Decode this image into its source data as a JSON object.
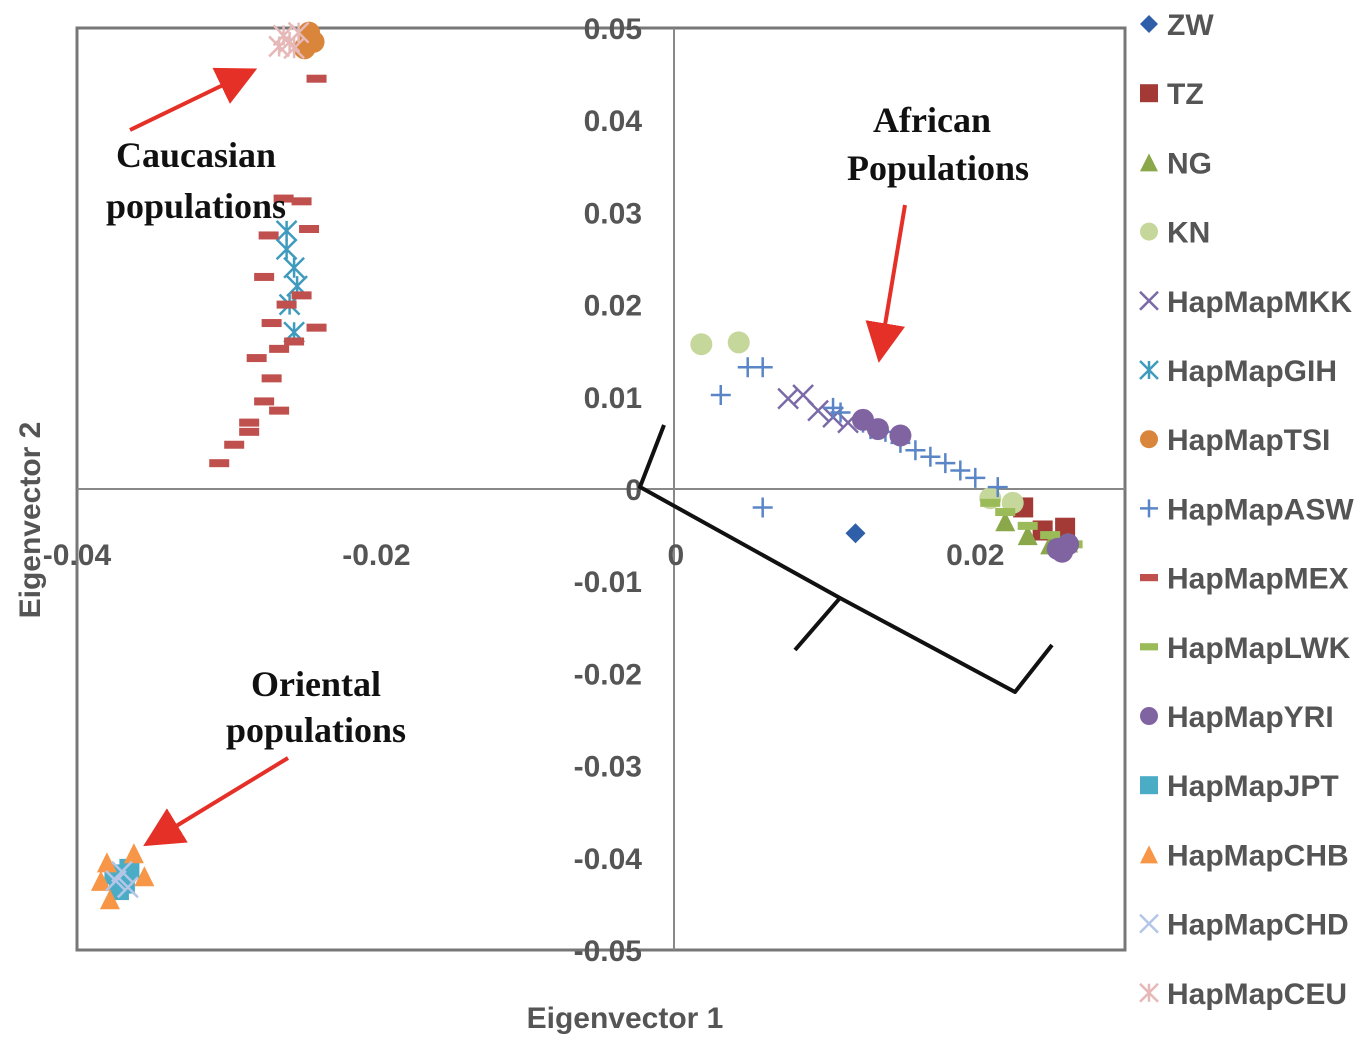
{
  "chart_data": {
    "type": "scatter",
    "xlabel": "Eigenvector 1",
    "ylabel": "Eigenvector 2",
    "xlim": [
      -0.04,
      0.03
    ],
    "ylim": [
      -0.05,
      0.05
    ],
    "x_ticks": [
      "-0.04",
      "-0.02",
      "0",
      "0.02"
    ],
    "y_ticks": [
      "0.05",
      "0.04",
      "0.03",
      "0.02",
      "0.01",
      "0",
      "-0.01",
      "-0.02",
      "-0.03",
      "-0.04",
      "-0.05"
    ],
    "grid": false,
    "legend_position": "right",
    "series": [
      {
        "name": "ZW",
        "marker": "diamond",
        "color": "#2e5fa8",
        "points": [
          [
            0.012,
            -0.0048
          ]
        ]
      },
      {
        "name": "TZ",
        "marker": "square",
        "color": "#a33a36",
        "points": [
          [
            0.0232,
            -0.002
          ],
          [
            0.0245,
            -0.0045
          ],
          [
            0.026,
            -0.0042
          ]
        ]
      },
      {
        "name": "NG",
        "marker": "triangle",
        "color": "#8aa84a",
        "points": [
          [
            0.022,
            -0.0035
          ],
          [
            0.0235,
            -0.005
          ],
          [
            0.025,
            -0.006
          ],
          [
            0.0262,
            -0.0058
          ]
        ]
      },
      {
        "name": "KN",
        "marker": "circle",
        "color": "#c6d79c",
        "points": [
          [
            0.0017,
            0.0157
          ],
          [
            0.0042,
            0.0159
          ],
          [
            0.0225,
            -0.0015
          ],
          [
            0.021,
            -0.001
          ]
        ]
      },
      {
        "name": "HapMapMKK",
        "marker": "x",
        "color": "#7b6aa8",
        "points": [
          [
            0.0075,
            0.0098
          ],
          [
            0.0085,
            0.0102
          ],
          [
            0.0095,
            0.0085
          ],
          [
            0.0105,
            0.0078
          ],
          [
            0.0115,
            0.0072
          ]
        ]
      },
      {
        "name": "HapMapGIH",
        "marker": "star",
        "color": "#3f9bbd",
        "points": [
          [
            -0.026,
            0.028
          ],
          [
            -0.0255,
            0.024
          ],
          [
            -0.0258,
            0.02
          ],
          [
            -0.0255,
            0.017
          ],
          [
            -0.026,
            0.026
          ],
          [
            -0.0253,
            0.022
          ]
        ]
      },
      {
        "name": "HapMapTSI",
        "marker": "circle",
        "color": "#d9853b",
        "points": [
          [
            -0.0242,
            0.0485
          ],
          [
            -0.0245,
            0.0495
          ],
          [
            -0.0248,
            0.0478
          ]
        ]
      },
      {
        "name": "HapMapASW",
        "marker": "plus",
        "color": "#5a86c7",
        "points": [
          [
            0.003,
            0.0102
          ],
          [
            0.0048,
            0.0132
          ],
          [
            0.0058,
            0.0132
          ],
          [
            0.0058,
            -0.002
          ],
          [
            0.0105,
            0.0088
          ],
          [
            0.0125,
            0.0072
          ],
          [
            0.014,
            0.0062
          ],
          [
            0.016,
            0.0042
          ],
          [
            0.018,
            0.0028
          ],
          [
            0.02,
            0.0012
          ],
          [
            0.0215,
            0.0002
          ],
          [
            0.019,
            0.002
          ],
          [
            0.017,
            0.0035
          ],
          [
            0.015,
            0.005
          ],
          [
            0.013,
            0.0065
          ],
          [
            0.011,
            0.0083
          ]
        ]
      },
      {
        "name": "HapMapMEX",
        "marker": "dash",
        "color": "#c0504d",
        "points": [
          [
            -0.0305,
            0.0028
          ],
          [
            -0.0295,
            0.0048
          ],
          [
            -0.0285,
            0.0062
          ],
          [
            -0.0275,
            0.0095
          ],
          [
            -0.0265,
            0.0085
          ],
          [
            -0.027,
            0.012
          ],
          [
            -0.028,
            0.0142
          ],
          [
            -0.0265,
            0.0152
          ],
          [
            -0.027,
            0.018
          ],
          [
            -0.026,
            0.02
          ],
          [
            -0.025,
            0.021
          ],
          [
            -0.0275,
            0.023
          ],
          [
            -0.025,
            0.0312
          ],
          [
            -0.0245,
            0.0282
          ],
          [
            -0.0262,
            0.0315
          ],
          [
            -0.024,
            0.0175
          ],
          [
            -0.0255,
            0.016
          ],
          [
            -0.024,
            0.0445
          ],
          [
            -0.0285,
            0.0072
          ],
          [
            -0.0272,
            0.0275
          ]
        ]
      },
      {
        "name": "HapMapLWK",
        "marker": "dash",
        "color": "#9bbb59",
        "points": [
          [
            0.022,
            -0.0025
          ],
          [
            0.0235,
            -0.004
          ],
          [
            0.025,
            -0.005
          ],
          [
            0.0265,
            -0.006
          ],
          [
            0.021,
            -0.0015
          ]
        ]
      },
      {
        "name": "HapMapYRI",
        "marker": "circle",
        "color": "#8064a2",
        "points": [
          [
            0.0125,
            0.0075
          ],
          [
            0.0135,
            0.0065
          ],
          [
            0.015,
            0.0058
          ],
          [
            0.0258,
            -0.0068
          ],
          [
            0.0262,
            -0.006
          ],
          [
            0.0255,
            -0.0065
          ]
        ]
      },
      {
        "name": "HapMapJPT",
        "marker": "square",
        "color": "#4bacc6",
        "points": [
          [
            -0.0375,
            -0.0418
          ],
          [
            -0.0368,
            -0.0428
          ],
          [
            -0.0372,
            -0.0435
          ],
          [
            -0.0365,
            -0.0412
          ]
        ]
      },
      {
        "name": "HapMapCHB",
        "marker": "triangle",
        "color": "#f79646",
        "points": [
          [
            -0.038,
            -0.0405
          ],
          [
            -0.0362,
            -0.0395
          ],
          [
            -0.0378,
            -0.0445
          ],
          [
            -0.0355,
            -0.042
          ],
          [
            -0.0384,
            -0.0425
          ]
        ]
      },
      {
        "name": "HapMapCHD",
        "marker": "x",
        "color": "#b3c6e7",
        "points": [
          [
            -0.0374,
            -0.0425
          ],
          [
            -0.0366,
            -0.0432
          ],
          [
            -0.037,
            -0.0415
          ]
        ]
      },
      {
        "name": "HapMapCEU",
        "marker": "star",
        "color": "#e6b9b8",
        "points": [
          [
            -0.0262,
            0.0492
          ],
          [
            -0.0258,
            0.0485
          ],
          [
            -0.0255,
            0.0478
          ],
          [
            -0.0265,
            0.048
          ],
          [
            -0.0252,
            0.0495
          ]
        ]
      }
    ],
    "annotations": [
      {
        "text": [
          "Caucasian",
          "populations"
        ]
      },
      {
        "text": [
          "African",
          "Populations"
        ]
      },
      {
        "text": [
          "Oriental",
          "populations"
        ]
      }
    ]
  }
}
